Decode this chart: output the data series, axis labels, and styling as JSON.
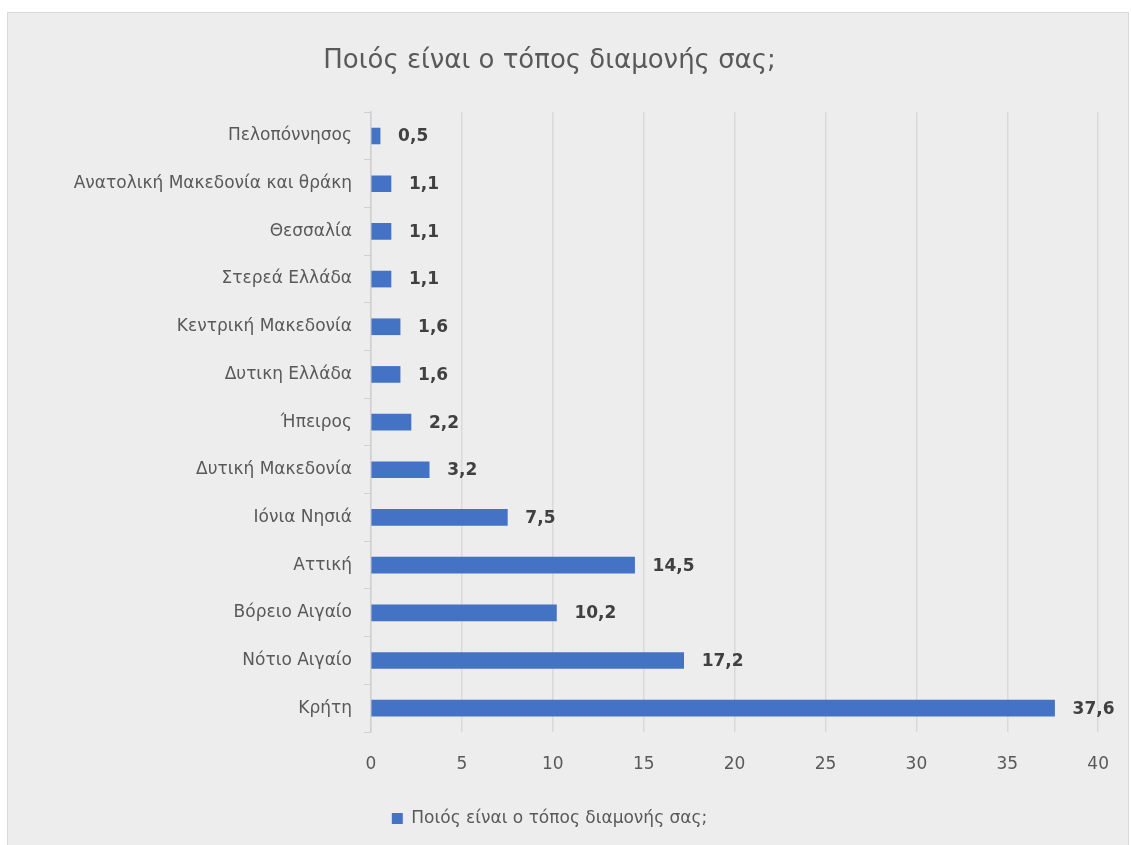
{
  "chart_data": {
    "type": "bar",
    "orientation": "horizontal",
    "title": "Ποιός είναι ο τόπος διαμονής σας;",
    "categories": [
      "Πελοπόννησος",
      "Ανατολική Μακεδονία και θράκη",
      "Θεσσαλία",
      "Στερεά Ελλάδα",
      "Κεντρική Μακεδονία",
      "Δυτικη Ελλάδα",
      "Ήπειρος",
      "Δυτική Μακεδονία",
      "Ιόνια Νησιά",
      "Αττική",
      "Βόρειο Αιγαίο",
      "Νότιο Αιγαίο",
      "Κρήτη"
    ],
    "series": [
      {
        "name": "Ποιός είναι ο τόπος διαμονής σας;",
        "color": "#4472c4",
        "values": [
          0.5,
          1.1,
          1.1,
          1.1,
          1.6,
          1.6,
          2.2,
          3.2,
          7.5,
          14.5,
          10.2,
          17.2,
          37.6
        ],
        "value_labels": [
          "0,5",
          "1,1",
          "1,1",
          "1,1",
          "1,6",
          "1,6",
          "2,2",
          "3,2",
          "7,5",
          "14,5",
          "10,2",
          "17,2",
          "37,6"
        ]
      }
    ],
    "xlim": [
      0,
      40
    ],
    "xticks": [
      0,
      5,
      10,
      15,
      20,
      25,
      30,
      35,
      40
    ],
    "grid": "x",
    "legend": "bottom"
  }
}
